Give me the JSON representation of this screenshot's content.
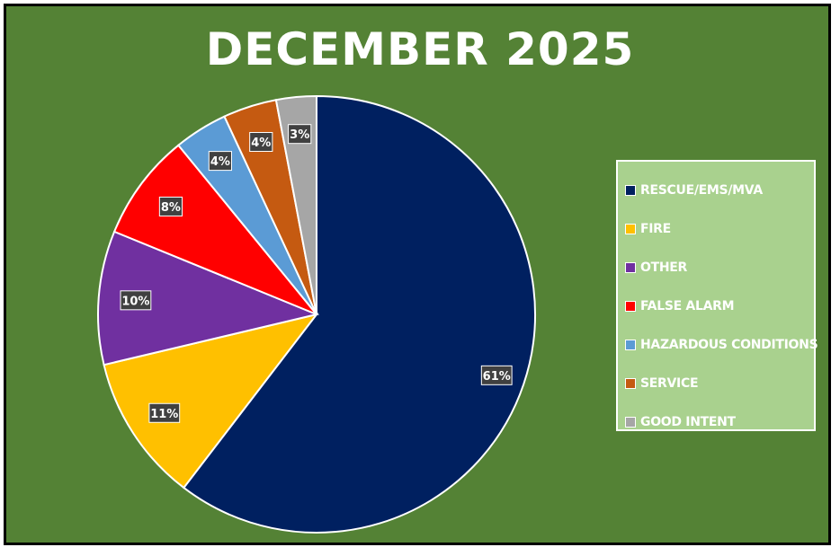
{
  "chart_data": {
    "type": "pie",
    "title": "DECEMBER 2025",
    "legend_position": "right",
    "slices": [
      {
        "label": "RESCUE/EMS/MVA",
        "value": 61,
        "value_label": "61%",
        "color": "#002060"
      },
      {
        "label": "FIRE",
        "value": 11,
        "value_label": "11%",
        "color": "#ffc000"
      },
      {
        "label": "OTHER",
        "value": 10,
        "value_label": "10%",
        "color": "#7030a0"
      },
      {
        "label": "FALSE ALARM",
        "value": 8,
        "value_label": "8%",
        "color": "#ff0000"
      },
      {
        "label": "HAZARDOUS CONDITIONS",
        "value": 4,
        "value_label": "4%",
        "color": "#5b9bd5"
      },
      {
        "label": "SERVICE",
        "value": 4,
        "value_label": "4%",
        "color": "#c55a11"
      },
      {
        "label": "GOOD INTENT",
        "value": 3,
        "value_label": "3%",
        "color": "#a6a6a6"
      }
    ]
  }
}
